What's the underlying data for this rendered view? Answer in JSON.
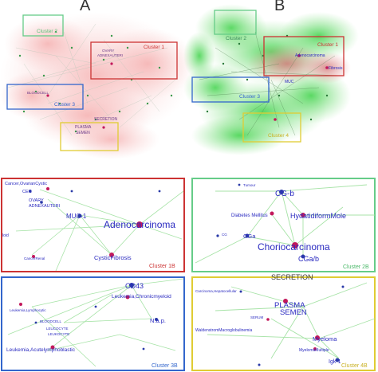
{
  "panels": {
    "a": "A",
    "b": "B"
  },
  "overview_a": {
    "cluster1": "Cluster 1",
    "cluster2": "Cluster 2",
    "cluster3": "Cluster 3",
    "terms": [
      "OVARY",
      "ADNEXAUTERI",
      "BLOODCELL",
      "SECRETION",
      "PLASMA",
      "SEMEN"
    ]
  },
  "overview_b": {
    "cluster1": "Cluster 1",
    "cluster2": "Cluster 2",
    "cluster3": "Cluster 3",
    "cluster4": "Cluster 4",
    "terms": [
      "Adenocarcinoma",
      "MUC",
      "Fibrosis"
    ]
  },
  "cluster1b": {
    "label": "Cluster 1B",
    "nodes": [
      "Cancer,OvarianCystic",
      "CEG",
      "OVARY",
      "ADNEXAUTERI",
      "MUC-1",
      "Adenocarcinoma",
      "CysticFibrosis",
      "CancerRenal",
      "loid"
    ]
  },
  "cluster2b": {
    "label": "Cluster 2B",
    "nodes": [
      "Tumour",
      "CG-b",
      "Diabetes Mellitus",
      "HydatidiformMole",
      "CG",
      "CGa",
      "Choriocarcinoma",
      "CGa/b"
    ]
  },
  "cluster3b": {
    "label": "Cluster 3B",
    "nodes": [
      "CD43",
      "Leukemia,Chronicmyeloid",
      "N.a.p.",
      "Leukemia,Lymphocytic",
      "BLOODCELL",
      "LEUCOCYTE",
      "LEUKOCYTE",
      "Leukemia,Acutelymphoblastic"
    ]
  },
  "cluster4b": {
    "label": "Cluster 4B",
    "nodes": [
      "SECRETION",
      "Carcinoma,Hepatocellular",
      "PLASMA",
      "SEMEN",
      "SERUM",
      "WaldenstromMacroglobulinemia",
      "Myeloma",
      "MyelomaMultiple",
      "Igk-1"
    ]
  },
  "colors": {
    "cluster1": "#cc3333",
    "cluster2": "#66cc88",
    "cluster3": "#3366cc",
    "cluster4": "#e0cc33",
    "node_red": "#c2185b",
    "node_blue": "#2a3aa8",
    "edge_green": "#6fd06f",
    "label_blue": "#2a2ac0"
  }
}
